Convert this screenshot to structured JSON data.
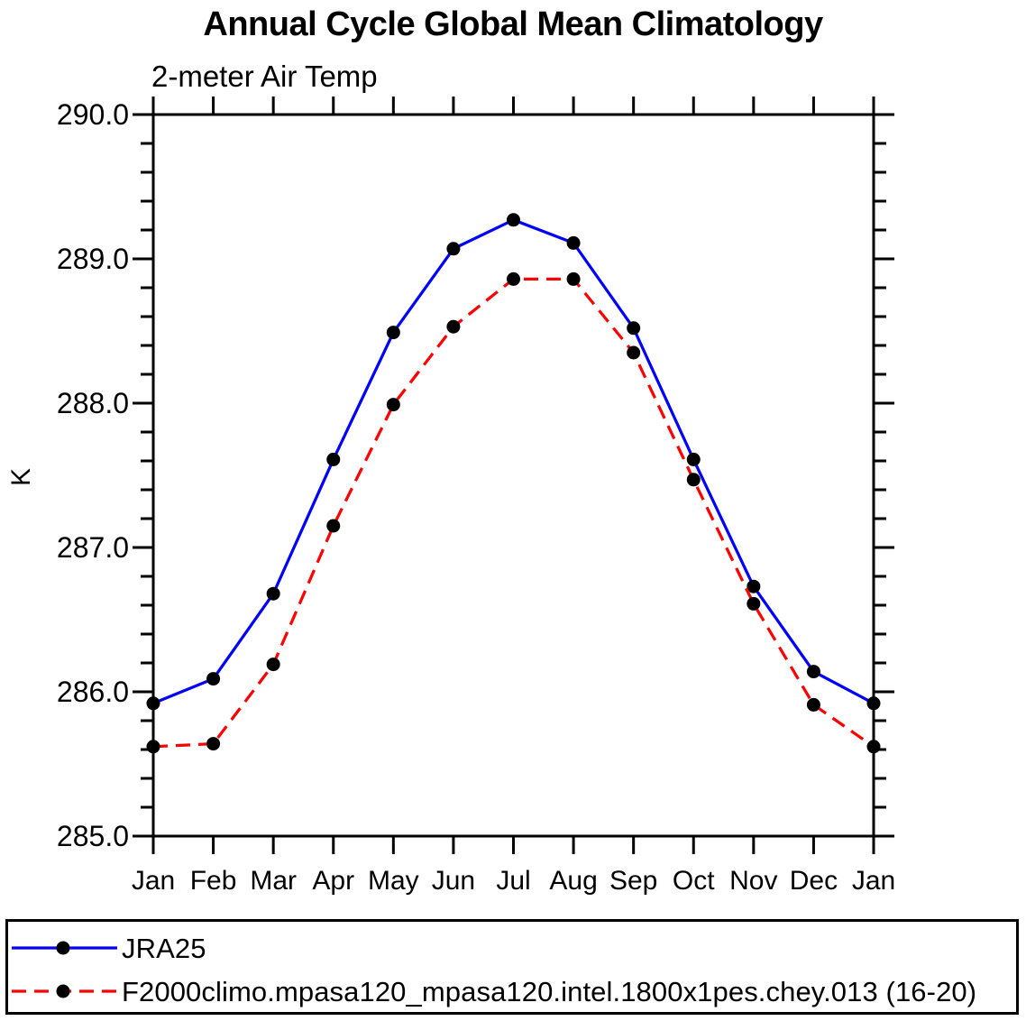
{
  "figure": {
    "background": "#ffffff"
  },
  "chart_data": {
    "type": "line",
    "title": "Annual Cycle Global Mean Climatology",
    "subtitle": "2-meter Air Temp",
    "xlabel": "",
    "ylabel": "K",
    "x_ticklabels": [
      "Jan",
      "Feb",
      "Mar",
      "Apr",
      "May",
      "Jun",
      "Jul",
      "Aug",
      "Sep",
      "Oct",
      "Nov",
      "Dec",
      "Jan"
    ],
    "y_ticks": {
      "values": [
        285.0,
        286.0,
        287.0,
        288.0,
        289.0,
        290.0
      ],
      "labels": [
        "285.0",
        "286.0",
        "287.0",
        "288.0",
        "289.0",
        "290.0"
      ]
    },
    "y_minor_step": 0.2,
    "ylim": [
      285.0,
      290.0
    ],
    "grid": false,
    "frame": "closed box with outward ticks on all four sides",
    "legend_position": "bottom-box",
    "marker": {
      "shape": "circle",
      "color": "#000000",
      "radius": 7.5
    },
    "axis_color": "#000000",
    "series": [
      {
        "name": "JRA25",
        "color": "#0000ff",
        "style": "solid",
        "values": [
          285.92,
          286.09,
          286.68,
          287.61,
          288.49,
          289.07,
          289.27,
          289.11,
          288.52,
          287.61,
          286.73,
          286.14,
          285.92
        ]
      },
      {
        "name": "F2000climo.mpasa120_mpasa120.intel.1800x1pes.chey.013 (16-20)",
        "color": "#ff0000",
        "style": "dashed",
        "values": [
          285.62,
          285.64,
          286.19,
          287.15,
          287.99,
          288.53,
          288.86,
          288.86,
          288.35,
          287.47,
          286.61,
          285.91,
          285.62
        ]
      }
    ]
  }
}
